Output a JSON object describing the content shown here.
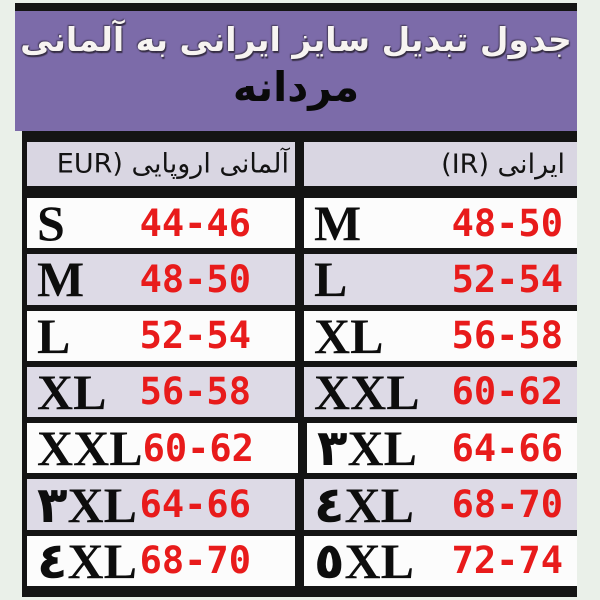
{
  "header": {
    "title": "جدول تبدیل سایز ایرانی به آلمانی",
    "subtitle": "مردانه"
  },
  "table": {
    "header_eur": "آلمانی اروپایی (EUR",
    "header_ir": "ایرانی (IR)",
    "rows": [
      {
        "eur_size": "S",
        "eur_range": "44-46",
        "ir_size": "M",
        "ir_range": "48-50"
      },
      {
        "eur_size": "M",
        "eur_range": "48-50",
        "ir_size": "L",
        "ir_range": "52-54"
      },
      {
        "eur_size": "L",
        "eur_range": "52-54",
        "ir_size": "XL",
        "ir_range": "56-58"
      },
      {
        "eur_size": "XL",
        "eur_range": "56-58",
        "ir_size": "XXL",
        "ir_range": "60-62"
      },
      {
        "eur_size": "XXL",
        "eur_range": "60-62",
        "ir_size": "۳XL",
        "ir_range": "64-66"
      },
      {
        "eur_size": "۳XL",
        "eur_range": "64-66",
        "ir_size": "٤XL",
        "ir_range": "68-70"
      },
      {
        "eur_size": "٤XL",
        "eur_range": "68-70",
        "ir_size": "٥XL",
        "ir_range": "72-74"
      }
    ]
  },
  "colors": {
    "page_bg": "#eaf0e9",
    "panel_purple": "#7c6ba9",
    "header_cell_bg": "#d9d6e2",
    "row_bg_white": "#fcfcfc",
    "row_bg_lavender": "#dddae6",
    "border_black": "#141414",
    "range_red": "#e81b1b",
    "title_text": "#f7f4f1",
    "subtitle_text": "#0a0a0a"
  }
}
